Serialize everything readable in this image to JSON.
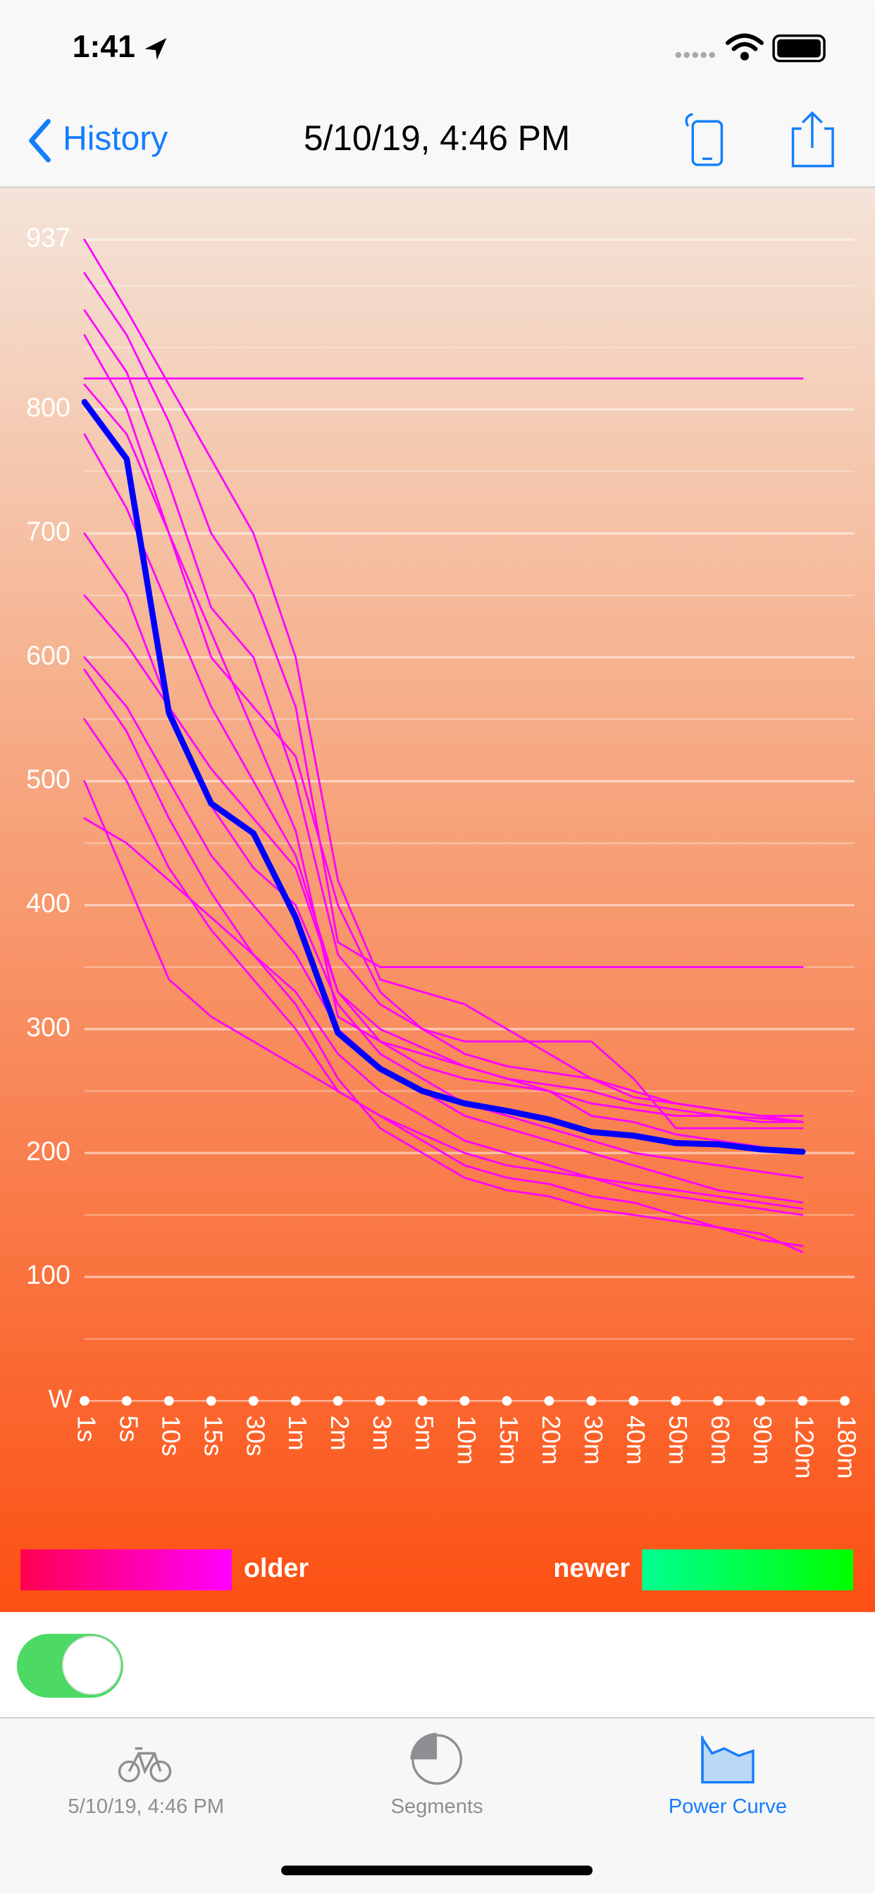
{
  "status_bar": {
    "time": "1:41"
  },
  "nav": {
    "back": "History",
    "title": "5/10/19, 4:46 PM"
  },
  "chart_data": {
    "type": "line",
    "y_unit_label": "W",
    "categories": [
      "1s",
      "5s",
      "10s",
      "15s",
      "30s",
      "1m",
      "2m",
      "3m",
      "5m",
      "10m",
      "15m",
      "20m",
      "30m",
      "40m",
      "50m",
      "60m",
      "90m",
      "120m",
      "180m"
    ],
    "ylim": [
      0,
      937
    ],
    "yticks": [
      100,
      200,
      300,
      400,
      500,
      600,
      700,
      800,
      937
    ],
    "minor_yticks": [
      50,
      150,
      250,
      350,
      450,
      550,
      650,
      750,
      850,
      900
    ],
    "grid": true,
    "series": [
      {
        "color": "#ff00ff",
        "values": [
          825,
          825,
          825,
          825,
          825,
          825,
          825,
          825,
          825,
          825,
          825,
          825,
          825,
          825,
          825,
          825,
          825,
          825,
          null
        ]
      },
      {
        "color": "#ff00ff",
        "values": [
          937,
          880,
          820,
          760,
          700,
          600,
          420,
          340,
          330,
          320,
          300,
          280,
          260,
          245,
          240,
          235,
          230,
          225,
          null
        ]
      },
      {
        "color": "#ff00ff",
        "values": [
          910,
          860,
          790,
          700,
          650,
          560,
          370,
          350,
          350,
          350,
          350,
          350,
          350,
          350,
          350,
          350,
          350,
          350,
          null
        ]
      },
      {
        "color": "#ff00ff",
        "values": [
          500,
          420,
          340,
          310,
          290,
          270,
          250,
          230,
          210,
          190,
          180,
          175,
          165,
          160,
          150,
          140,
          130,
          125,
          null
        ]
      },
      {
        "color": "#ff00ff",
        "values": [
          470,
          450,
          420,
          390,
          360,
          320,
          260,
          220,
          200,
          180,
          170,
          165,
          155,
          150,
          145,
          140,
          135,
          120,
          null
        ]
      },
      {
        "color": "#ff00ff",
        "values": [
          860,
          800,
          700,
          600,
          560,
          520,
          400,
          330,
          300,
          290,
          290,
          290,
          290,
          260,
          220,
          220,
          220,
          220,
          null
        ]
      },
      {
        "color": "#ff00ff",
        "values": [
          780,
          720,
          640,
          560,
          500,
          440,
          330,
          290,
          270,
          260,
          255,
          250,
          240,
          235,
          230,
          230,
          225,
          225,
          null
        ]
      },
      {
        "color": "#ff00ff",
        "values": [
          600,
          560,
          500,
          440,
          400,
          360,
          300,
          270,
          250,
          230,
          220,
          210,
          200,
          190,
          180,
          170,
          165,
          160,
          null
        ]
      },
      {
        "color": "#ff00ff",
        "values": [
          880,
          830,
          740,
          640,
          600,
          500,
          360,
          320,
          300,
          280,
          270,
          265,
          260,
          250,
          240,
          235,
          230,
          230,
          null
        ]
      },
      {
        "color": "#ff00ff",
        "values": [
          700,
          650,
          560,
          480,
          430,
          400,
          320,
          280,
          260,
          240,
          230,
          220,
          210,
          200,
          195,
          190,
          185,
          180,
          null
        ]
      },
      {
        "color": "#ff00ff",
        "values": [
          550,
          500,
          430,
          380,
          340,
          300,
          250,
          230,
          215,
          200,
          190,
          185,
          180,
          175,
          170,
          165,
          160,
          155,
          null
        ]
      },
      {
        "color": "#ff00ff",
        "values": [
          650,
          610,
          560,
          510,
          470,
          430,
          330,
          300,
          285,
          270,
          260,
          250,
          230,
          225,
          215,
          210,
          205,
          200,
          null
        ]
      },
      {
        "color": "#ff00ff",
        "values": [
          820,
          780,
          700,
          620,
          540,
          460,
          310,
          290,
          280,
          270,
          260,
          255,
          250,
          240,
          235,
          230,
          228,
          225,
          null
        ]
      },
      {
        "color": "#ff00ff",
        "values": [
          590,
          540,
          470,
          410,
          360,
          330,
          280,
          250,
          230,
          210,
          200,
          190,
          180,
          170,
          165,
          160,
          155,
          150,
          null
        ]
      },
      {
        "color": "#0000ff",
        "values": [
          806,
          760,
          555,
          482,
          458,
          390,
          297,
          268,
          250,
          240,
          234,
          227,
          217,
          214,
          208,
          207,
          203,
          201,
          null
        ]
      }
    ],
    "legend": {
      "older": "older",
      "newer": "newer"
    }
  },
  "toggle": {
    "on": true
  },
  "tab_bar": {
    "items": [
      {
        "label": "5/10/19, 4:46 PM",
        "selected": false
      },
      {
        "label": "Segments",
        "selected": false
      },
      {
        "label": "Power Curve",
        "selected": true
      }
    ]
  }
}
